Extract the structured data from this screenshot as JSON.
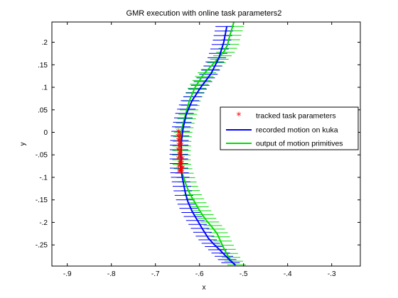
{
  "chart_data": {
    "type": "line",
    "title": "GMR execution with online task parameters2",
    "xlabel": "x",
    "ylabel": "y",
    "xlim": [
      -0.935,
      -0.235
    ],
    "ylim": [
      -0.297,
      0.245
    ],
    "xticks": [
      -0.9,
      -0.8,
      -0.7,
      -0.6,
      -0.5,
      -0.4,
      -0.3
    ],
    "yticks": [
      0.2,
      0.15,
      0.1,
      0.05,
      0,
      -0.05,
      -0.1,
      -0.15,
      -0.2,
      -0.25
    ],
    "grid": false,
    "legend_position": "right",
    "series": [
      {
        "name": "tracked task parameters",
        "color": "#ff0000",
        "marker": "*",
        "x": [
          -0.648,
          -0.646,
          -0.649,
          -0.645,
          -0.648,
          -0.644,
          -0.647,
          -0.645,
          -0.649,
          -0.643,
          -0.646,
          -0.644,
          -0.648,
          -0.642,
          -0.645,
          -0.643,
          -0.647,
          -0.641,
          -0.644,
          -0.642,
          -0.646,
          -0.64,
          -0.643,
          -0.641,
          -0.645,
          -0.639,
          -0.642,
          -0.64,
          -0.644,
          -0.638,
          -0.641,
          -0.643
        ],
        "y": [
          0.0,
          -0.005,
          -0.01,
          -0.015,
          -0.02,
          -0.025,
          -0.03,
          -0.035,
          -0.04,
          -0.045,
          -0.05,
          -0.055,
          -0.06,
          -0.065,
          -0.07,
          -0.075,
          -0.078,
          -0.081,
          -0.084,
          -0.087,
          -0.089,
          -0.091,
          -0.05,
          -0.03,
          -0.02,
          -0.06,
          -0.04,
          -0.07,
          -0.01,
          -0.08,
          -0.085,
          -0.09
        ]
      },
      {
        "name": "recorded motion on kuka",
        "color": "#0000ff",
        "x": [
          -0.538,
          -0.545,
          -0.556,
          -0.574,
          -0.597,
          -0.617,
          -0.63,
          -0.637,
          -0.641,
          -0.642,
          -0.642,
          -0.64,
          -0.636,
          -0.632,
          -0.626,
          -0.617,
          -0.605,
          -0.593,
          -0.58,
          -0.566,
          -0.553,
          -0.54,
          -0.53,
          -0.518
        ],
        "y": [
          0.235,
          0.2,
          0.165,
          0.13,
          0.1,
          0.07,
          0.04,
          0.01,
          -0.02,
          -0.05,
          -0.075,
          -0.095,
          -0.115,
          -0.135,
          -0.155,
          -0.175,
          -0.195,
          -0.215,
          -0.235,
          -0.25,
          -0.262,
          -0.275,
          -0.285,
          -0.295
        ]
      },
      {
        "name": "output of motion primitives",
        "color": "#00dd00",
        "x": [
          -0.522,
          -0.528,
          -0.534,
          -0.536,
          -0.544,
          -0.566,
          -0.59,
          -0.61,
          -0.623,
          -0.63,
          -0.637,
          -0.643,
          -0.645,
          -0.646,
          -0.645,
          -0.641,
          -0.636,
          -0.631,
          -0.625,
          -0.617,
          -0.608,
          -0.597,
          -0.585,
          -0.572,
          -0.56,
          -0.553,
          -0.546,
          -0.538,
          -0.53,
          -0.52
        ],
        "y": [
          0.245,
          0.225,
          0.205,
          0.195,
          0.18,
          0.155,
          0.13,
          0.1,
          0.07,
          0.045,
          0.02,
          -0.005,
          -0.03,
          -0.055,
          -0.07,
          -0.085,
          -0.1,
          -0.115,
          -0.13,
          -0.145,
          -0.16,
          -0.178,
          -0.195,
          -0.21,
          -0.225,
          -0.24,
          -0.255,
          -0.27,
          -0.283,
          -0.295
        ]
      }
    ]
  }
}
